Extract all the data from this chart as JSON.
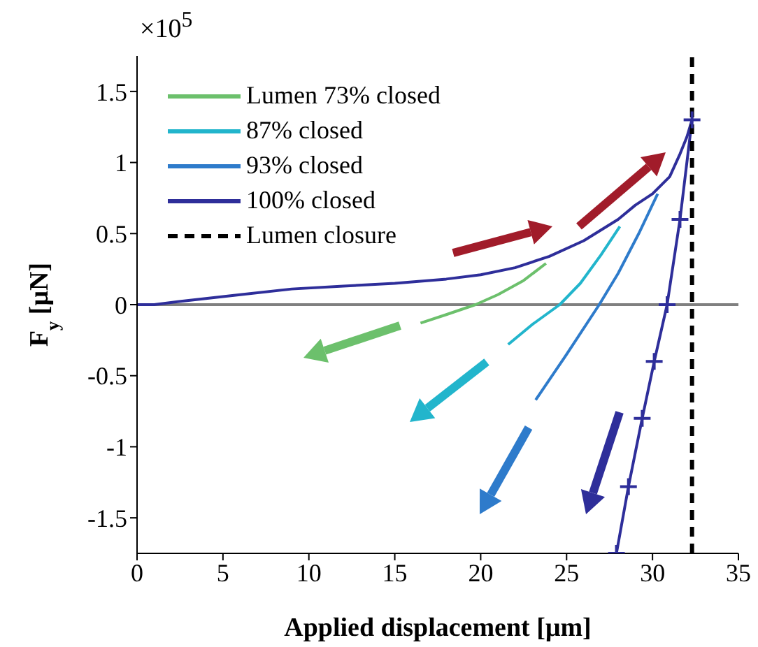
{
  "chart_data": {
    "type": "line",
    "xlabel": "Applied displacement [μm]",
    "ylabel": "F$_{y}$ [μN]",
    "annotations": [
      "×10$^{5}$"
    ],
    "xlim": [
      0,
      35
    ],
    "xticks": [
      0,
      5,
      10,
      15,
      20,
      25,
      30,
      35
    ],
    "ylim": [
      -1.75,
      1.75
    ],
    "yticks": [
      -1.5,
      -1,
      -0.5,
      0,
      0.5,
      1,
      1.5
    ],
    "legend": "top left",
    "ref_lines": [
      {
        "axis": "y",
        "value": 0,
        "color": "#808080"
      }
    ],
    "series": [
      {
        "name": "Lumen 73% closed",
        "color": "#6cc06c",
        "marker": "none",
        "x": [
          23.8,
          22.5,
          21,
          19.7,
          18,
          16.5
        ],
        "values": [
          0.29,
          0.17,
          0.07,
          0,
          -0.07,
          -0.13
        ]
      },
      {
        "name": "87% closed",
        "color": "#22b5cc",
        "marker": "none",
        "x": [
          28.1,
          27,
          25.8,
          24.6,
          23,
          21.6
        ],
        "values": [
          0.55,
          0.35,
          0.15,
          0,
          -0.14,
          -0.28
        ]
      },
      {
        "name": "93% closed",
        "color": "#2e7bcb",
        "marker": "none",
        "x": [
          30.3,
          29.2,
          28,
          26.9,
          25,
          23.2
        ],
        "values": [
          0.78,
          0.5,
          0.22,
          0,
          -0.35,
          -0.67
        ]
      },
      {
        "name": "100% closed",
        "color": "#2e2e9a",
        "marker": "none",
        "x": [
          0,
          1,
          3,
          6,
          9,
          12,
          15,
          18,
          20,
          22,
          24,
          26,
          28,
          29,
          30,
          31,
          31.6,
          32,
          32.3
        ],
        "values": [
          0,
          0,
          0.03,
          0.07,
          0.11,
          0.13,
          0.15,
          0.18,
          0.21,
          0.26,
          0.34,
          0.45,
          0.6,
          0.7,
          0.78,
          0.9,
          1.06,
          1.18,
          1.3
        ]
      },
      {
        "color": "#2e2e9a",
        "marker": "cross",
        "x": [
          32.3,
          31.6,
          30.85,
          30.1,
          29.4,
          28.6,
          27.9
        ],
        "values": [
          1.3,
          0.6,
          0,
          -0.4,
          -0.8,
          -1.28,
          -1.75
        ]
      },
      {
        "name": "Lumen closure",
        "color": "#000000",
        "line_style": "dashed",
        "marker": "none",
        "x": [
          32.3,
          32.3
        ],
        "values": [
          -1.75,
          1.75
        ]
      }
    ]
  }
}
